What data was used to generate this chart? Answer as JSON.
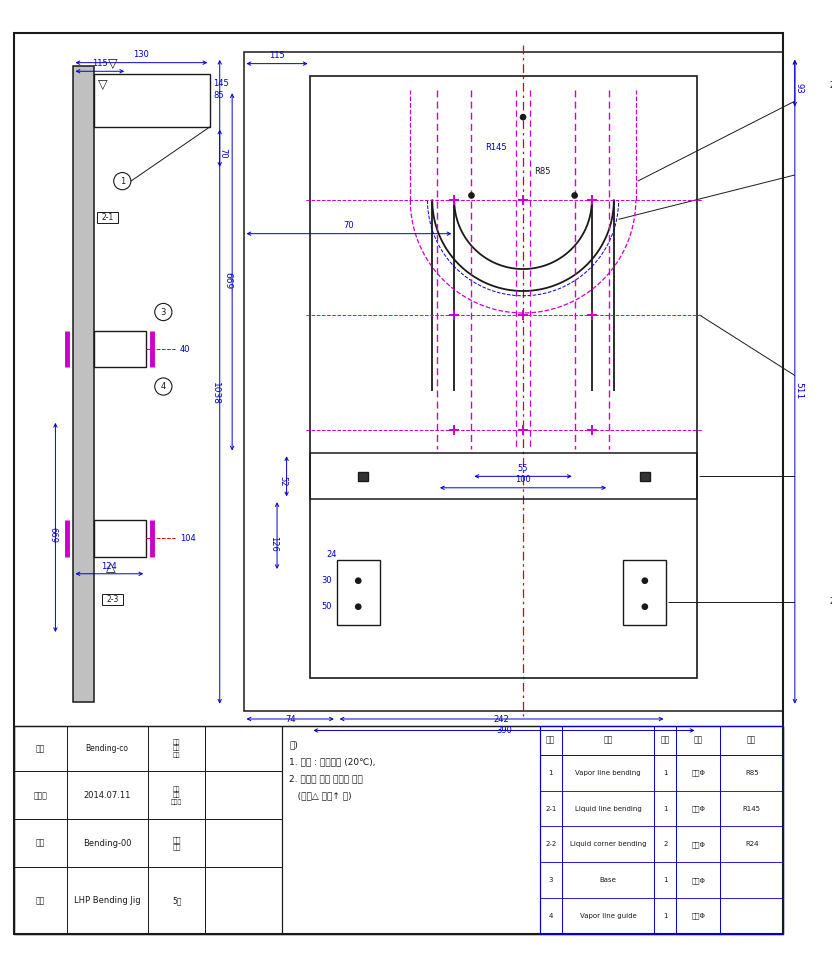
{
  "bg_color": "#ffffff",
  "line_color": "#1a1a1a",
  "blue_color": "#0000cc",
  "magenta_color": "#cc00cc",
  "red_color": "#dd0000",
  "gray_color": "#c0c0c0",
  "title": "LHP Bending Jig",
  "drawing_number": "Bending-00",
  "date": "2014.07.11",
  "company": "Bending-co",
  "parts": [
    {
      "no": "1",
      "name": "Vapor line bending",
      "qty": "1",
      "mat": "시설Φ",
      "rmk": "R85"
    },
    {
      "no": "2-1",
      "name": "Liquid line bending",
      "qty": "1",
      "mat": "시설Φ",
      "rmk": "R145"
    },
    {
      "no": "2-2",
      "name": "Liquid corner bending",
      "qty": "2",
      "mat": "시설Φ",
      "rmk": "R24"
    },
    {
      "no": "3",
      "name": "Base",
      "qty": "1",
      "mat": "시설Φ",
      "rmk": ""
    },
    {
      "no": "4",
      "name": "Vapor line guide",
      "qty": "1",
      "mat": "시설Φ",
      "rmk": ""
    }
  ]
}
